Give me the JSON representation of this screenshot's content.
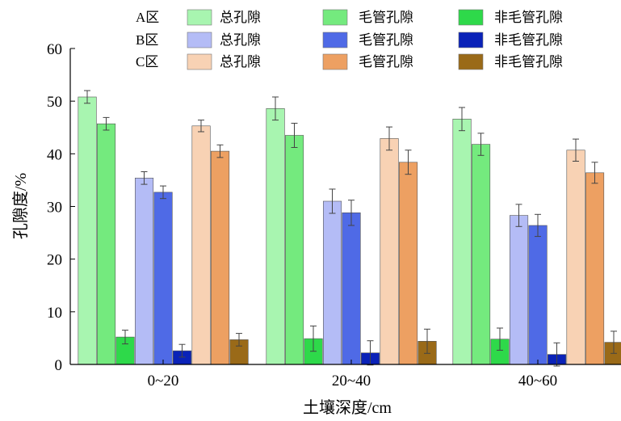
{
  "chart_data": {
    "type": "bar",
    "xlabel": "土壤深度/cm",
    "ylabel": "孔隙度/%",
    "categories": [
      "0~20",
      "20~40",
      "40~60"
    ],
    "ylim": [
      0,
      60
    ],
    "yticks": [
      0,
      10,
      20,
      30,
      40,
      50,
      60
    ],
    "grid": false,
    "legend": {
      "position": "top",
      "rows": [
        {
          "label": "A区",
          "items": [
            "总孔隙",
            "毛管孔隙",
            "非毛管孔隙"
          ]
        },
        {
          "label": "B区",
          "items": [
            "总孔隙",
            "毛管孔隙",
            "非毛管孔隙"
          ]
        },
        {
          "label": "C区",
          "items": [
            "总孔隙",
            "毛管孔隙",
            "非毛管孔隙"
          ]
        }
      ]
    },
    "series": [
      {
        "name": "A区 总孔隙",
        "color": "#a8f5b0",
        "values": [
          50.8,
          48.6,
          46.6
        ],
        "errors": [
          1.2,
          2.2,
          2.2
        ]
      },
      {
        "name": "A区 毛管孔隙",
        "color": "#74ea7e",
        "values": [
          45.7,
          43.5,
          41.8
        ],
        "errors": [
          1.2,
          2.3,
          2.1
        ]
      },
      {
        "name": "A区 非毛管孔隙",
        "color": "#2ed94a",
        "values": [
          5.2,
          4.9,
          4.8
        ],
        "errors": [
          1.3,
          2.4,
          2.1
        ]
      },
      {
        "name": "B区 总孔隙",
        "color": "#b4bcf6",
        "values": [
          35.4,
          31.0,
          28.3
        ],
        "errors": [
          1.2,
          2.3,
          2.1
        ]
      },
      {
        "name": "B区 毛管孔隙",
        "color": "#4f6ae6",
        "values": [
          32.7,
          28.8,
          26.4
        ],
        "errors": [
          1.2,
          2.4,
          2.1
        ]
      },
      {
        "name": "B区 非毛管孔隙",
        "color": "#0a22b8",
        "values": [
          2.6,
          2.2,
          1.9
        ],
        "errors": [
          1.2,
          2.3,
          2.2
        ]
      },
      {
        "name": "C区 总孔隙",
        "color": "#f8d2b4",
        "values": [
          45.3,
          42.9,
          40.7
        ],
        "errors": [
          1.1,
          2.2,
          2.1
        ]
      },
      {
        "name": "C区 毛管孔隙",
        "color": "#eda062",
        "values": [
          40.5,
          38.4,
          36.4
        ],
        "errors": [
          1.2,
          2.3,
          2.0
        ]
      },
      {
        "name": "C区 非毛管孔隙",
        "color": "#9a6a18",
        "values": [
          4.7,
          4.4,
          4.2
        ],
        "errors": [
          1.2,
          2.3,
          2.1
        ]
      }
    ]
  }
}
